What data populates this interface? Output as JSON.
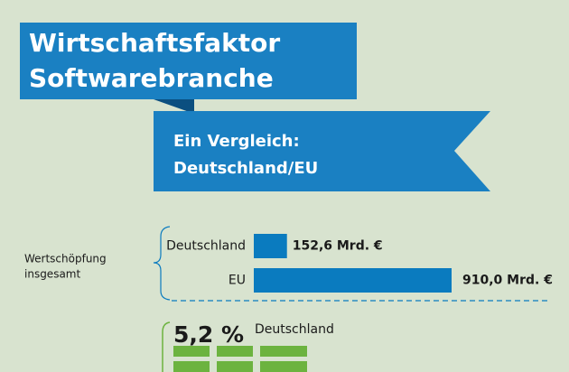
{
  "header": {
    "title": [
      "Wirtschaftsfaktor",
      "Softwarebranche"
    ],
    "subtitle": [
      "Ein Vergleich:",
      "Deutschland/EU"
    ]
  },
  "chart_data": {
    "type": "bar",
    "label": [
      "Wertschöpfung",
      "insgesamt"
    ],
    "categories": [
      "Deutschland",
      "EU"
    ],
    "values": [
      152.6,
      910.0
    ],
    "value_labels": [
      "152,6 Mrd. €",
      "910,0 Mrd. €"
    ],
    "color": "#0a7bbf"
  },
  "share": {
    "value": 5.2,
    "label": "5,2 %",
    "name": "Deutschland",
    "color": "#6cb33f"
  }
}
